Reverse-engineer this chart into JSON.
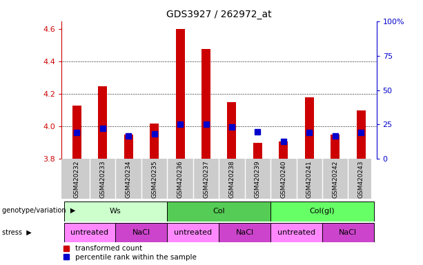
{
  "title": "GDS3927 / 262972_at",
  "samples": [
    "GSM420232",
    "GSM420233",
    "GSM420234",
    "GSM420235",
    "GSM420236",
    "GSM420237",
    "GSM420238",
    "GSM420239",
    "GSM420240",
    "GSM420241",
    "GSM420242",
    "GSM420243"
  ],
  "bar_bottom": 3.8,
  "red_values": [
    4.13,
    4.25,
    3.95,
    4.02,
    4.6,
    4.48,
    4.15,
    3.9,
    3.91,
    4.18,
    3.95,
    4.1
  ],
  "blue_y_values": [
    3.963,
    3.99,
    3.943,
    3.957,
    4.015,
    4.015,
    3.997,
    3.967,
    3.908,
    3.963,
    3.943,
    3.963
  ],
  "ylim_left": [
    3.8,
    4.65
  ],
  "yticks_left": [
    3.8,
    4.0,
    4.2,
    4.4,
    4.6
  ],
  "ylim_right": [
    0,
    100
  ],
  "yticks_right": [
    0,
    25,
    50,
    75,
    100
  ],
  "ytick_labels_right": [
    "0",
    "25",
    "50",
    "75",
    "100%"
  ],
  "bar_width": 0.35,
  "red_color": "#cc0000",
  "blue_color": "#0000cc",
  "grid_yticks": [
    4.0,
    4.2,
    4.4
  ],
  "genotype_groups": [
    {
      "label": "Ws",
      "start": 0,
      "end": 3,
      "color": "#ccffcc"
    },
    {
      "label": "Col",
      "start": 4,
      "end": 7,
      "color": "#55cc55"
    },
    {
      "label": "Col(gl)",
      "start": 8,
      "end": 11,
      "color": "#66ff66"
    }
  ],
  "stress_groups": [
    {
      "label": "untreated",
      "start": 0,
      "end": 1,
      "color": "#ff88ff"
    },
    {
      "label": "NaCl",
      "start": 2,
      "end": 3,
      "color": "#cc44cc"
    },
    {
      "label": "untreated",
      "start": 4,
      "end": 5,
      "color": "#ff88ff"
    },
    {
      "label": "NaCl",
      "start": 6,
      "end": 7,
      "color": "#cc44cc"
    },
    {
      "label": "untreated",
      "start": 8,
      "end": 9,
      "color": "#ff88ff"
    },
    {
      "label": "NaCl",
      "start": 10,
      "end": 11,
      "color": "#cc44cc"
    }
  ],
  "legend_red_label": "transformed count",
  "legend_blue_label": "percentile rank within the sample",
  "genotype_label": "genotype/variation",
  "stress_label": "stress",
  "right_axis_color": "#0000cc",
  "xticklabel_bg": "#cccccc",
  "blue_marker_size": 5.5
}
